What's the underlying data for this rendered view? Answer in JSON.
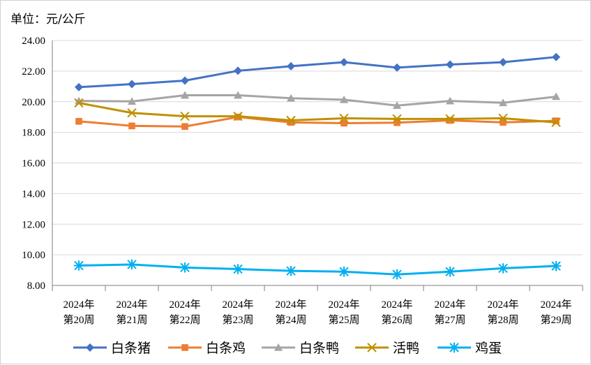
{
  "chart_data": {
    "type": "line",
    "unit_label": "单位：元/公斤",
    "ylim": [
      8,
      24
    ],
    "yticks": [
      "8.00",
      "10.00",
      "12.00",
      "14.00",
      "16.00",
      "18.00",
      "20.00",
      "22.00",
      "24.00"
    ],
    "categories": [
      [
        "2024年",
        "第20周"
      ],
      [
        "2024年",
        "第21周"
      ],
      [
        "2024年",
        "第22周"
      ],
      [
        "2024年",
        "第23周"
      ],
      [
        "2024年",
        "第24周"
      ],
      [
        "2024年",
        "第25周"
      ],
      [
        "2024年",
        "第26周"
      ],
      [
        "2024年",
        "第27周"
      ],
      [
        "2024年",
        "第28周"
      ],
      [
        "2024年",
        "第29周"
      ]
    ],
    "grid": "horizontal",
    "legend": "bottom",
    "series": [
      {
        "name": "白条猪",
        "color": "#4472C4",
        "marker": "diamond",
        "values": [
          20.95,
          21.15,
          21.38,
          22.02,
          22.32,
          22.58,
          22.23,
          22.43,
          22.58,
          22.92
        ]
      },
      {
        "name": "白条鸡",
        "color": "#ED7D31",
        "marker": "square",
        "values": [
          18.72,
          18.42,
          18.38,
          19.0,
          18.65,
          18.6,
          18.63,
          18.78,
          18.65,
          18.75
        ]
      },
      {
        "name": "白条鸭",
        "color": "#A5A5A5",
        "marker": "triangle",
        "values": [
          20.05,
          20.02,
          20.42,
          20.42,
          20.23,
          20.13,
          19.75,
          20.05,
          19.93,
          20.33
        ]
      },
      {
        "name": "活鸭",
        "color": "#BF9000",
        "marker": "x",
        "values": [
          19.92,
          19.27,
          19.05,
          19.05,
          18.78,
          18.92,
          18.88,
          18.88,
          18.92,
          18.65
        ]
      },
      {
        "name": "鸡蛋",
        "color": "#00B0F0",
        "marker": "star",
        "values": [
          9.3,
          9.37,
          9.17,
          9.07,
          8.95,
          8.9,
          8.72,
          8.9,
          9.12,
          9.27
        ]
      }
    ]
  }
}
